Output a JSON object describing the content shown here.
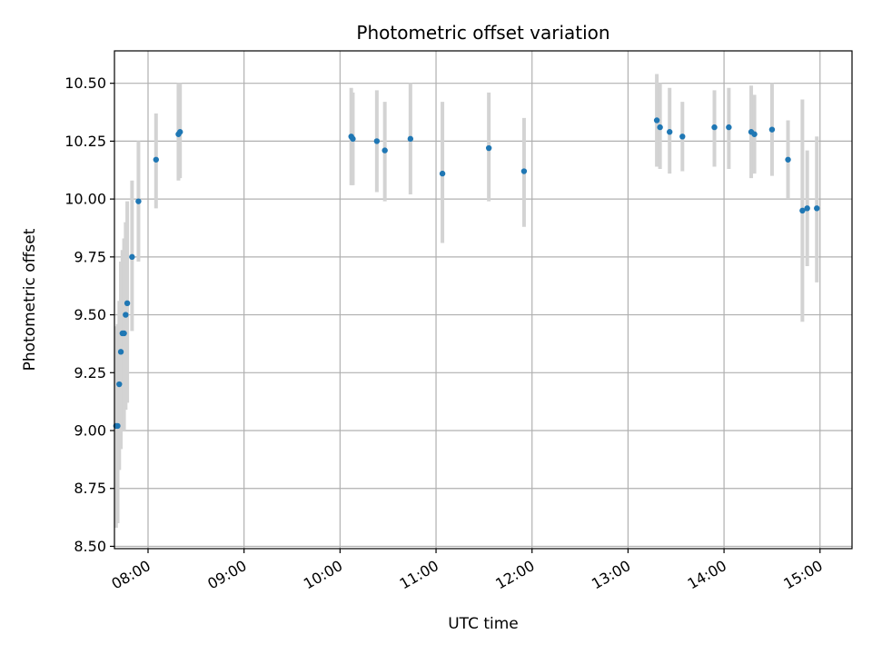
{
  "chart_data": {
    "type": "scatter",
    "title": "Photometric offset variation",
    "xlabel": "UTC time",
    "ylabel": "Photometric offset",
    "xlim": [
      "07:39",
      "15:20"
    ],
    "ylim": [
      8.49,
      10.64
    ],
    "grid": true,
    "x_ticks": [
      "08:00",
      "09:00",
      "10:00",
      "11:00",
      "12:00",
      "13:00",
      "14:00",
      "15:00"
    ],
    "y_ticks": [
      "8.50",
      "8.75",
      "9.00",
      "9.25",
      "9.50",
      "9.75",
      "10.00",
      "10.25",
      "10.50"
    ],
    "series": [
      {
        "marker_color": "#1f77b4",
        "errorbar_color": "#d3d3d3",
        "points": [
          {
            "time": "07:40",
            "y": 9.02,
            "lo": 8.58,
            "hi": 9.45
          },
          {
            "time": "07:41",
            "y": 9.02,
            "lo": 8.6,
            "hi": 9.46
          },
          {
            "time": "07:42",
            "y": 9.2,
            "lo": 8.83,
            "hi": 9.56
          },
          {
            "time": "07:43",
            "y": 9.34,
            "lo": 8.92,
            "hi": 9.73
          },
          {
            "time": "07:44",
            "y": 9.42,
            "lo": 9.05,
            "hi": 9.78
          },
          {
            "time": "07:45",
            "y": 9.42,
            "lo": 9.0,
            "hi": 9.83
          },
          {
            "time": "07:46",
            "y": 9.5,
            "lo": 9.09,
            "hi": 9.9
          },
          {
            "time": "07:47",
            "y": 9.55,
            "lo": 9.12,
            "hi": 9.99
          },
          {
            "time": "07:50",
            "y": 9.75,
            "lo": 9.43,
            "hi": 10.08
          },
          {
            "time": "07:54",
            "y": 9.99,
            "lo": 9.73,
            "hi": 10.25
          },
          {
            "time": "08:05",
            "y": 10.17,
            "lo": 9.96,
            "hi": 10.37
          },
          {
            "time": "08:19",
            "y": 10.28,
            "lo": 10.08,
            "hi": 10.5
          },
          {
            "time": "08:20",
            "y": 10.29,
            "lo": 10.09,
            "hi": 10.5
          },
          {
            "time": "10:07",
            "y": 10.27,
            "lo": 10.06,
            "hi": 10.48
          },
          {
            "time": "10:08",
            "y": 10.26,
            "lo": 10.06,
            "hi": 10.46
          },
          {
            "time": "10:23",
            "y": 10.25,
            "lo": 10.03,
            "hi": 10.47
          },
          {
            "time": "10:28",
            "y": 10.21,
            "lo": 9.99,
            "hi": 10.42
          },
          {
            "time": "10:44",
            "y": 10.26,
            "lo": 10.02,
            "hi": 10.5
          },
          {
            "time": "11:04",
            "y": 10.11,
            "lo": 9.81,
            "hi": 10.42
          },
          {
            "time": "11:33",
            "y": 10.22,
            "lo": 9.99,
            "hi": 10.46
          },
          {
            "time": "11:55",
            "y": 10.12,
            "lo": 9.88,
            "hi": 10.35
          },
          {
            "time": "13:18",
            "y": 10.34,
            "lo": 10.14,
            "hi": 10.54
          },
          {
            "time": "13:20",
            "y": 10.31,
            "lo": 10.13,
            "hi": 10.5
          },
          {
            "time": "13:26",
            "y": 10.29,
            "lo": 10.11,
            "hi": 10.48
          },
          {
            "time": "13:34",
            "y": 10.27,
            "lo": 10.12,
            "hi": 10.42
          },
          {
            "time": "13:54",
            "y": 10.31,
            "lo": 10.14,
            "hi": 10.47
          },
          {
            "time": "14:03",
            "y": 10.31,
            "lo": 10.13,
            "hi": 10.48
          },
          {
            "time": "14:17",
            "y": 10.29,
            "lo": 10.09,
            "hi": 10.49
          },
          {
            "time": "14:19",
            "y": 10.28,
            "lo": 10.11,
            "hi": 10.45
          },
          {
            "time": "14:30",
            "y": 10.3,
            "lo": 10.1,
            "hi": 10.5
          },
          {
            "time": "14:40",
            "y": 10.17,
            "lo": 10.0,
            "hi": 10.34
          },
          {
            "time": "14:49",
            "y": 9.95,
            "lo": 9.47,
            "hi": 10.43
          },
          {
            "time": "14:52",
            "y": 9.96,
            "lo": 9.71,
            "hi": 10.21
          },
          {
            "time": "14:58",
            "y": 9.96,
            "lo": 9.64,
            "hi": 10.27
          }
        ]
      }
    ]
  }
}
